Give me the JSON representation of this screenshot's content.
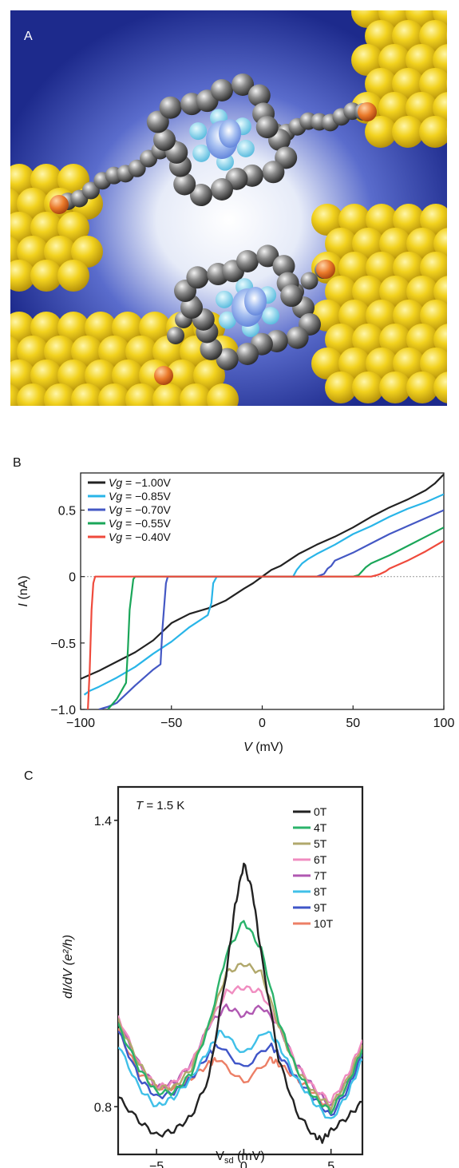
{
  "panels": {
    "a": {
      "label": "A"
    },
    "b": {
      "label": "B"
    },
    "c": {
      "label": "C"
    }
  },
  "chart_data": [
    {
      "type": "line",
      "panel": "B",
      "xlabel_var": "V",
      "xlabel_unit": " (mV)",
      "ylabel_var": "I",
      "ylabel_unit": " (nA)",
      "xlim": [
        -100,
        100
      ],
      "ylim": [
        -1.0,
        0.78
      ],
      "xticks": [
        -100,
        -50,
        0,
        50,
        100
      ],
      "xtick_labels": [
        "−100",
        "−50",
        "0",
        "50",
        "100"
      ],
      "yticks": [
        0.5,
        0,
        -0.5,
        -1.0
      ],
      "ytick_labels": [
        "0.5",
        "0",
        "−0.5",
        "−1.0"
      ],
      "zero_line": true,
      "grid": false,
      "legend_position": "top-left",
      "series": [
        {
          "name_var": "Vg",
          "name_rest": " = −1.00V",
          "color": "#222222",
          "x": [
            -100,
            -95,
            -90,
            -80,
            -70,
            -60,
            -50,
            -40,
            -30,
            -20,
            -10,
            -5,
            0,
            5,
            10,
            20,
            30,
            40,
            50,
            60,
            70,
            80,
            90,
            95,
            100
          ],
          "y": [
            -0.77,
            -0.74,
            -0.71,
            -0.64,
            -0.57,
            -0.48,
            -0.35,
            -0.28,
            -0.24,
            -0.18,
            -0.09,
            -0.05,
            0.0,
            0.05,
            0.08,
            0.17,
            0.24,
            0.3,
            0.37,
            0.45,
            0.52,
            0.58,
            0.65,
            0.7,
            0.77
          ]
        },
        {
          "name_var": "Vg",
          "name_rest": " = −0.85V",
          "color": "#29b5e8",
          "x": [
            -98,
            -95,
            -90,
            -80,
            -70,
            -60,
            -50,
            -40,
            -30,
            -28,
            -27,
            -25,
            -10,
            0,
            10,
            17,
            19,
            22,
            25,
            30,
            40,
            50,
            60,
            70,
            80,
            90,
            100
          ],
          "y": [
            -0.89,
            -0.86,
            -0.83,
            -0.76,
            -0.68,
            -0.58,
            -0.49,
            -0.38,
            -0.29,
            -0.2,
            -0.05,
            0.0,
            0.0,
            0.0,
            0.0,
            0.0,
            0.05,
            0.1,
            0.13,
            0.17,
            0.24,
            0.32,
            0.38,
            0.45,
            0.51,
            0.56,
            0.62
          ]
        },
        {
          "name_var": "Vg",
          "name_rest": " = −0.70V",
          "color": "#4458c4",
          "x": [
            -90,
            -85,
            -80,
            -70,
            -60,
            -56,
            -55,
            -53,
            -52,
            -50,
            0,
            30,
            34,
            36,
            38,
            40,
            50,
            60,
            70,
            80,
            90,
            100
          ],
          "y": [
            -1.0,
            -0.98,
            -0.95,
            -0.82,
            -0.7,
            -0.66,
            -0.4,
            -0.05,
            0.0,
            0.0,
            0.0,
            0.0,
            0.02,
            0.06,
            0.08,
            0.12,
            0.18,
            0.25,
            0.32,
            0.38,
            0.44,
            0.5
          ]
        },
        {
          "name_var": "Vg",
          "name_rest": " = −0.55V",
          "color": "#1aa659",
          "x": [
            -85,
            -80,
            -75,
            -74,
            -73,
            -71,
            -70,
            0,
            50,
            53,
            55,
            57,
            60,
            70,
            80,
            90,
            100
          ],
          "y": [
            -1.0,
            -0.92,
            -0.8,
            -0.55,
            -0.25,
            -0.02,
            0.0,
            0.0,
            0.0,
            0.01,
            0.04,
            0.07,
            0.1,
            0.16,
            0.23,
            0.3,
            0.37
          ]
        },
        {
          "name_var": "Vg",
          "name_rest": " = −0.40V",
          "color": "#ef4a3c",
          "x": [
            -96,
            -95,
            -94,
            -93,
            -92,
            -90,
            0,
            60,
            63,
            65,
            68,
            70,
            80,
            90,
            100
          ],
          "y": [
            -1.0,
            -0.7,
            -0.25,
            -0.05,
            0.0,
            0.0,
            0.0,
            0.0,
            0.01,
            0.02,
            0.04,
            0.06,
            0.12,
            0.19,
            0.27
          ]
        }
      ]
    },
    {
      "type": "line",
      "panel": "C",
      "annotation_var": "T",
      "annotation_rest": " = 1.5 K",
      "xlabel_main": "V",
      "xlabel_sub": "sd",
      "xlabel_unit": " (mV)",
      "ylabel_text": "dI/dV (e²/h)",
      "xlim": [
        -7.2,
        6.8
      ],
      "ylim": [
        0.7,
        1.47
      ],
      "xticks": [
        -5,
        0,
        5
      ],
      "xtick_labels": [
        "−5",
        "0",
        "5"
      ],
      "yticks": [
        1.4,
        0.8
      ],
      "ytick_labels": [
        "1.4",
        "0.8"
      ],
      "grid": false,
      "legend_position": "top-right",
      "series": [
        {
          "name": "0T",
          "color": "#222222",
          "x": [
            -7.2,
            -6,
            -5,
            -4,
            -3,
            -2,
            -1,
            -0.5,
            0,
            0.5,
            1,
            2,
            3,
            4,
            4.5,
            5,
            6,
            6.8
          ],
          "y": [
            0.82,
            0.77,
            0.74,
            0.75,
            0.78,
            0.86,
            1.08,
            1.22,
            1.31,
            1.25,
            1.12,
            0.9,
            0.79,
            0.74,
            0.73,
            0.75,
            0.78,
            0.81
          ]
        },
        {
          "name": "4T",
          "color": "#2bb36b",
          "x": [
            -7.2,
            -6,
            -5,
            -4,
            -3,
            -2,
            -1,
            0,
            1,
            2,
            3,
            4,
            5,
            6,
            6.8
          ],
          "y": [
            0.97,
            0.88,
            0.83,
            0.83,
            0.87,
            0.97,
            1.12,
            1.19,
            1.13,
            0.98,
            0.88,
            0.82,
            0.79,
            0.85,
            0.92
          ]
        },
        {
          "name": "5T",
          "color": "#b1a86c",
          "x": [
            -7.2,
            -6,
            -5,
            -4,
            -3,
            -2,
            -1,
            0,
            1,
            2,
            3,
            4,
            5,
            6,
            6.8
          ],
          "y": [
            0.98,
            0.89,
            0.84,
            0.84,
            0.88,
            0.97,
            1.08,
            1.1,
            1.08,
            0.97,
            0.88,
            0.83,
            0.8,
            0.86,
            0.93
          ]
        },
        {
          "name": "6T",
          "color": "#f08cc0",
          "x": [
            -7.2,
            -6,
            -5,
            -4,
            -3,
            -2,
            -1,
            0,
            1,
            2,
            3,
            4,
            5,
            6,
            6.8
          ],
          "y": [
            0.99,
            0.89,
            0.84,
            0.85,
            0.89,
            0.97,
            1.04,
            1.05,
            1.04,
            0.97,
            0.89,
            0.84,
            0.81,
            0.87,
            0.94
          ]
        },
        {
          "name": "7T",
          "color": "#b058b2",
          "x": [
            -7.2,
            -6,
            -5,
            -4,
            -3,
            -2,
            -1,
            0,
            1,
            2,
            3,
            4,
            5,
            6,
            6.8
          ],
          "y": [
            0.98,
            0.89,
            0.84,
            0.85,
            0.89,
            0.97,
            1.01,
            0.99,
            1.01,
            0.97,
            0.89,
            0.84,
            0.8,
            0.86,
            0.93
          ]
        },
        {
          "name": "8T",
          "color": "#40c0e8",
          "x": [
            -7.2,
            -6,
            -5,
            -4,
            -3,
            -2,
            -1.3,
            0,
            1.3,
            2,
            3,
            4,
            5,
            6,
            6.8
          ],
          "y": [
            0.93,
            0.84,
            0.8,
            0.82,
            0.86,
            0.92,
            0.96,
            0.91,
            0.96,
            0.93,
            0.86,
            0.81,
            0.77,
            0.83,
            0.9
          ]
        },
        {
          "name": "9T",
          "color": "#3f55c8",
          "x": [
            -7.2,
            -6,
            -5,
            -4,
            -3,
            -2,
            -1.5,
            0,
            1.5,
            2,
            3,
            4,
            5,
            6,
            6.8
          ],
          "y": [
            0.96,
            0.86,
            0.82,
            0.83,
            0.86,
            0.91,
            0.93,
            0.88,
            0.93,
            0.91,
            0.86,
            0.82,
            0.78,
            0.84,
            0.91
          ]
        },
        {
          "name": "10T",
          "color": "#ec7f66",
          "x": [
            -7.2,
            -6,
            -5,
            -4,
            -3,
            -2,
            -1.5,
            0,
            1.5,
            2,
            3,
            4,
            5,
            6,
            6.8
          ],
          "y": [
            0.96,
            0.87,
            0.84,
            0.84,
            0.86,
            0.89,
            0.9,
            0.85,
            0.9,
            0.89,
            0.86,
            0.83,
            0.79,
            0.85,
            0.92
          ]
        }
      ]
    }
  ]
}
